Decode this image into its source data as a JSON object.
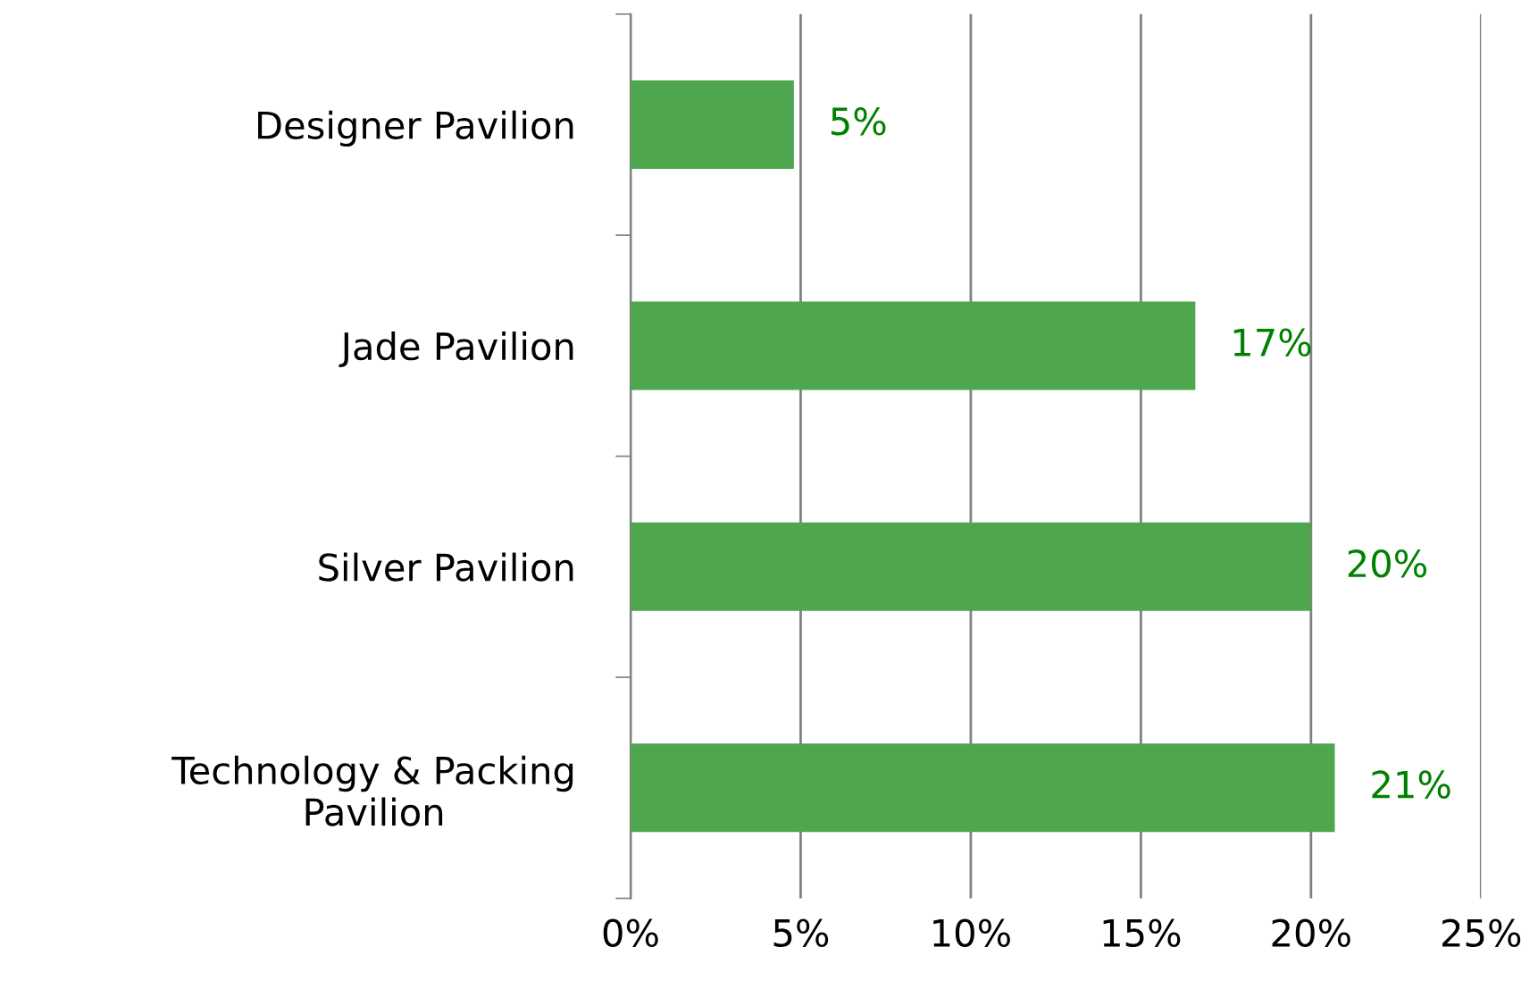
{
  "chart_data": {
    "type": "bar",
    "orientation": "horizontal",
    "categories": [
      "Designer Pavilion",
      "Jade Pavilion",
      "Silver Pavilion",
      "Technology & Packing\nPavilion"
    ],
    "values": [
      4.8,
      16.6,
      20.0,
      20.7
    ],
    "value_labels": [
      "5%",
      "17%",
      "20%",
      "21%"
    ],
    "color": "#4ea64e",
    "xlim": [
      0,
      25
    ],
    "xticks": [
      {
        "value": 0,
        "label": "0%"
      },
      {
        "value": 5,
        "label": "5%"
      },
      {
        "value": 10,
        "label": "10%"
      },
      {
        "value": 15,
        "label": "15%"
      },
      {
        "value": 20,
        "label": "20%"
      },
      {
        "value": 25,
        "label": "25%"
      }
    ],
    "grid": "x",
    "legend": false
  }
}
